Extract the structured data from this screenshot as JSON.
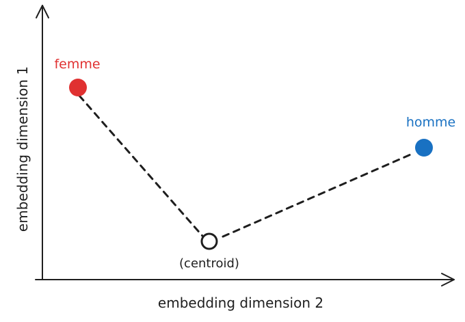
{
  "axes": {
    "x_label": "embedding dimension 2",
    "y_label": "embedding dimension 1"
  },
  "points": {
    "femme": {
      "label": "femme",
      "color": "#e03131"
    },
    "homme": {
      "label": "homme",
      "color": "#1971c2"
    },
    "centroid": {
      "label": "(centroid)"
    }
  },
  "colors": {
    "ink": "#1e1e1e"
  }
}
